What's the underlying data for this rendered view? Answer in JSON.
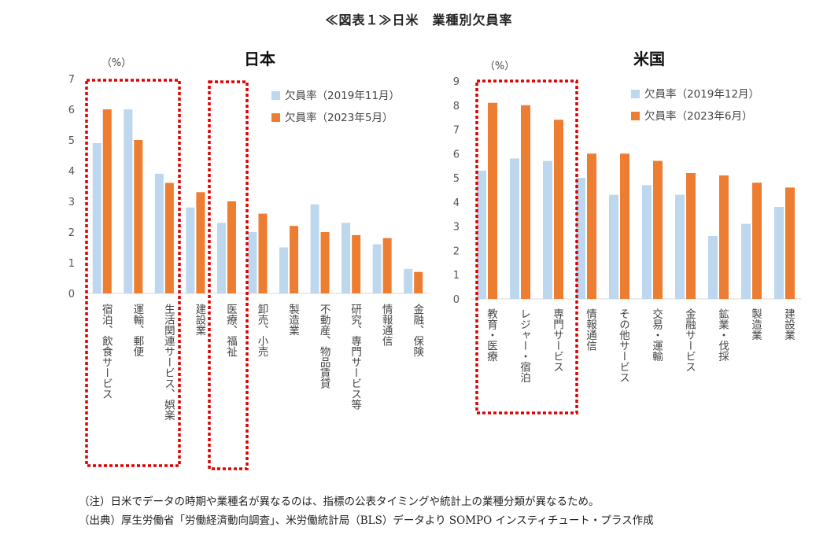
{
  "page_title": "≪図表１≫日米　業種別欠員率",
  "colors": {
    "before": "#bdd7ee",
    "after": "#ed7d31",
    "highlight": "#e00000",
    "axis": "#d9d9d9"
  },
  "chart_data": [
    {
      "type": "bar",
      "title": "日本",
      "unit_label": "（%）",
      "ylim": [
        0,
        7
      ],
      "yticks": [
        "0",
        "1",
        "2",
        "3",
        "4",
        "5",
        "6",
        "7"
      ],
      "categories": [
        "宿泊、飲食サービス",
        "運輸、郵便",
        "生活関連サービス、娯楽",
        "建設業",
        "医療、福祉",
        "卸売、小売",
        "製造業",
        "不動産、物品賃貸",
        "研究、専門サービス等",
        "情報通信",
        "金融、保険"
      ],
      "series": [
        {
          "name": "欠員率（2019年11月）",
          "values": [
            4.9,
            6.0,
            3.9,
            2.8,
            2.3,
            2.0,
            1.5,
            2.9,
            2.3,
            1.6,
            0.8
          ]
        },
        {
          "name": "欠員率（2023年5月）",
          "values": [
            6.0,
            5.0,
            3.6,
            3.3,
            3.0,
            2.6,
            2.2,
            2.0,
            1.9,
            1.8,
            0.7
          ]
        }
      ],
      "highlight_groups": [
        [
          0,
          2
        ],
        [
          4,
          4
        ]
      ],
      "legend": "top-right",
      "grid": false
    },
    {
      "type": "bar",
      "title": "米国",
      "unit_label": "（%）",
      "ylim": [
        0,
        9
      ],
      "yticks": [
        "0",
        "1",
        "2",
        "3",
        "4",
        "5",
        "6",
        "7",
        "8",
        "9"
      ],
      "categories": [
        "教育・医療",
        "レジャー・宿泊",
        "専門サービス",
        "情報通信",
        "その他サービス",
        "交易・運輸",
        "金融サービス",
        "鉱業・伐採",
        "製造業",
        "建設業"
      ],
      "series": [
        {
          "name": "欠員率（2019年12月）",
          "values": [
            5.3,
            5.8,
            5.7,
            5.0,
            4.3,
            4.7,
            4.3,
            2.6,
            3.1,
            3.8
          ]
        },
        {
          "name": "欠員率（2023年6月）",
          "values": [
            8.1,
            8.0,
            7.4,
            6.0,
            6.0,
            5.7,
            5.2,
            5.1,
            4.8,
            4.6
          ]
        }
      ],
      "highlight_groups": [
        [
          0,
          2
        ]
      ],
      "legend": "top-right",
      "grid": false
    }
  ],
  "notes": {
    "note": "（注）日米でデータの時期や業種名が異なるのは、指標の公表タイミングや統計上の業種分類が異なるため。",
    "source": "（出典）厚生労働省「労働経済動向調査」、米労働統計局（BLS）データより SOMPO インスティチュート・プラス作成"
  }
}
